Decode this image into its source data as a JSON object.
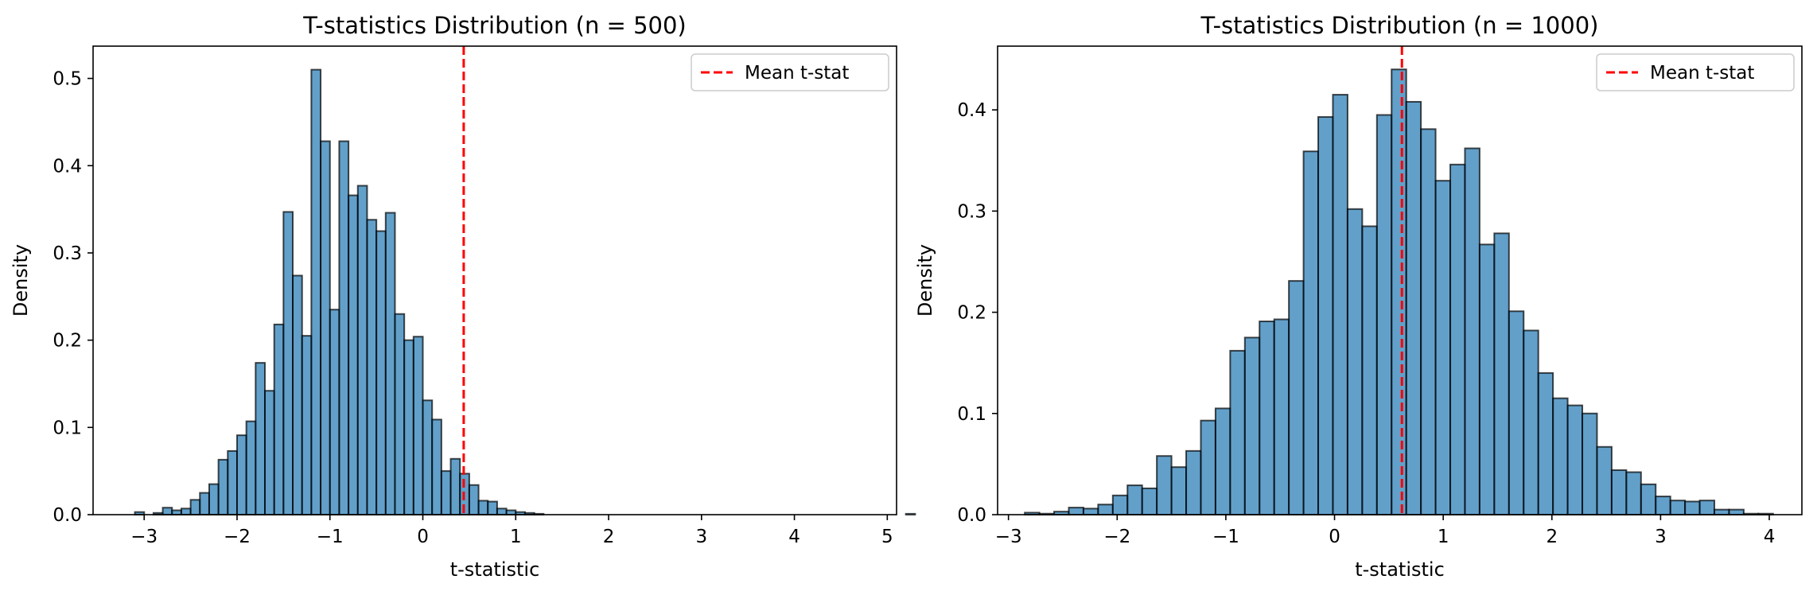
{
  "chart_data": [
    {
      "type": "bar",
      "title": "T-statistics Distribution (n = 500)",
      "xlabel": "t-statistic",
      "ylabel": "Density",
      "xlim": [
        -3.55,
        5.1
      ],
      "ylim": [
        0,
        0.537
      ],
      "xticks": [
        -3,
        -2,
        -1,
        0,
        1,
        2,
        3,
        4,
        5
      ],
      "yticks": [
        0.0,
        0.1,
        0.2,
        0.3,
        0.4,
        0.5
      ],
      "bin_start": -3.1,
      "bin_width": 0.1,
      "values": [
        0.003,
        0.0,
        0.002,
        0.008,
        0.005,
        0.007,
        0.017,
        0.025,
        0.035,
        0.063,
        0.073,
        0.091,
        0.107,
        0.174,
        0.142,
        0.218,
        0.347,
        0.274,
        0.205,
        0.51,
        0.428,
        0.235,
        0.428,
        0.366,
        0.377,
        0.338,
        0.325,
        0.346,
        0.23,
        0.2,
        0.204,
        0.131,
        0.109,
        0.05,
        0.064,
        0.047,
        0.034,
        0.016,
        0.015,
        0.007,
        0.005,
        0.003,
        0.002,
        0.001,
        0.0,
        0.0,
        0.0,
        0.0,
        0.0,
        0.0,
        0.0,
        0.0,
        0.0,
        0.0,
        0.0,
        0.0,
        0.0,
        0.0,
        0.0,
        0.0,
        0.0,
        0.0,
        0.0,
        0.0,
        0.0,
        0.0,
        0.0,
        0.0,
        0.0,
        0.0,
        0.0,
        0.0,
        0.0,
        0.0,
        0.0,
        0.0,
        0.0,
        0.0,
        0.0,
        0.0,
        0.0,
        0.0,
        0.0,
        0.001
      ],
      "mean_t_stat": 0.44,
      "legend": {
        "label": "Mean t-stat",
        "position": "top-right"
      },
      "bar_color": "#1f77b4",
      "mean_line_color": "#ff0000",
      "grid": false
    },
    {
      "type": "bar",
      "title": "T-statistics Distribution (n = 1000)",
      "xlabel": "t-statistic",
      "ylabel": "Density",
      "xlim": [
        -3.1,
        4.3
      ],
      "ylim": [
        0,
        0.463
      ],
      "xticks": [
        -3,
        -2,
        -1,
        0,
        1,
        2,
        3,
        4
      ],
      "yticks": [
        0.0,
        0.1,
        0.2,
        0.3,
        0.4
      ],
      "bin_start": -2.85,
      "bin_width": 0.135,
      "values": [
        0.002,
        0.001,
        0.003,
        0.007,
        0.006,
        0.01,
        0.019,
        0.029,
        0.026,
        0.058,
        0.047,
        0.063,
        0.093,
        0.105,
        0.162,
        0.175,
        0.191,
        0.193,
        0.231,
        0.359,
        0.393,
        0.415,
        0.302,
        0.285,
        0.395,
        0.44,
        0.408,
        0.381,
        0.33,
        0.346,
        0.362,
        0.267,
        0.278,
        0.201,
        0.182,
        0.14,
        0.115,
        0.108,
        0.1,
        0.067,
        0.044,
        0.042,
        0.03,
        0.018,
        0.014,
        0.013,
        0.014,
        0.005,
        0.005,
        0.001,
        0.001
      ],
      "mean_t_stat": 0.62,
      "legend": {
        "label": "Mean t-stat",
        "position": "top-right"
      },
      "bar_color": "#1f77b4",
      "mean_line_color": "#ff0000",
      "grid": false
    }
  ]
}
